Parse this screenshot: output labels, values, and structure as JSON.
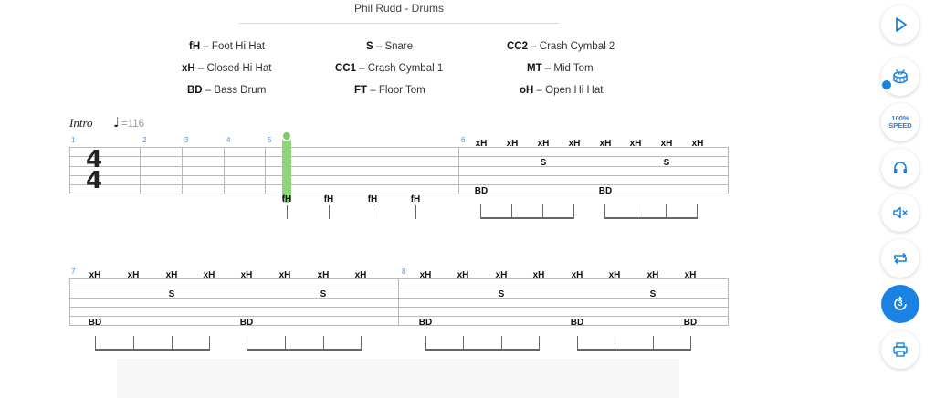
{
  "header": {
    "title": "Phil Rudd - Drums"
  },
  "legend": [
    {
      "abbr": "fH",
      "name": " – Foot Hi Hat"
    },
    {
      "abbr": "xH",
      "name": " – Closed Hi Hat"
    },
    {
      "abbr": "BD",
      "name": " – Bass Drum"
    },
    {
      "abbr": "S",
      "name": " – Snare"
    },
    {
      "abbr": "CC1",
      "name": " – Crash Cymbal 1"
    },
    {
      "abbr": "FT",
      "name": " – Floor Tom"
    },
    {
      "abbr": "CC2",
      "name": " – Crash Cymbal 2"
    },
    {
      "abbr": "MT",
      "name": " – Mid Tom"
    },
    {
      "abbr": "oH",
      "name": " – Open Hi Hat"
    }
  ],
  "score": {
    "section": "Intro",
    "tempo_note": "♩",
    "tempo": "=116",
    "time_sig_top": "4",
    "time_sig_bottom": "4",
    "bar_numbers": [
      "1",
      "2",
      "3",
      "4",
      "5",
      "6",
      "7",
      "8"
    ],
    "notes": {
      "xH": "xH",
      "S": "S",
      "BD": "BD",
      "fH": "fH"
    }
  },
  "toolbar": {
    "speed_line1": "100%",
    "speed_line2": "SPEED",
    "count_in": "3",
    "accent": "#1a82e2"
  },
  "icons": [
    "play-icon",
    "drum-icon",
    "headphones-icon",
    "mute-icon",
    "loop-icon",
    "count-in-icon",
    "print-icon"
  ]
}
